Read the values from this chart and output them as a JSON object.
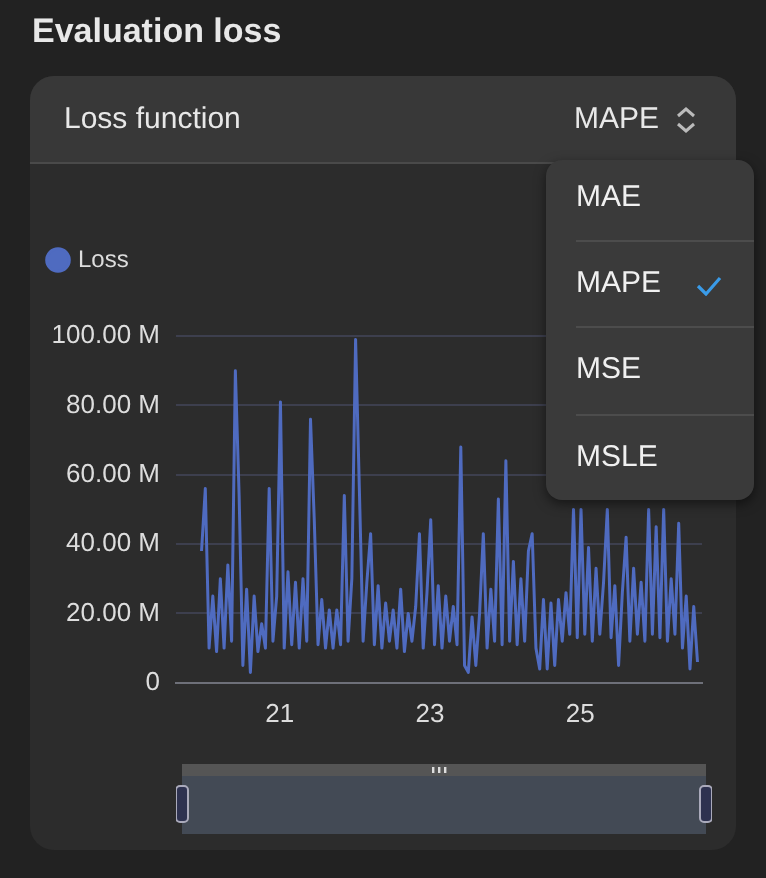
{
  "chart_data": {
    "type": "line",
    "title": "Evaluation loss",
    "subtitle": "Loss function",
    "annotations": [
      "MAPE",
      "MAE",
      "MAPE",
      "MSE",
      "MSLE"
    ],
    "x": [
      19.96,
      20.01,
      20.06,
      20.11,
      20.16,
      20.21,
      20.26,
      20.31,
      20.36,
      20.41,
      20.46,
      20.51,
      20.56,
      20.61,
      20.66,
      20.71,
      20.76,
      20.81,
      20.86,
      20.91,
      20.96,
      21.01,
      21.06,
      21.11,
      21.16,
      21.21,
      21.26,
      21.31,
      21.36,
      21.41,
      21.46,
      21.51,
      21.56,
      21.61,
      21.66,
      21.71,
      21.76,
      21.81,
      21.86,
      21.91,
      21.96,
      22.01,
      22.06,
      22.11,
      22.16,
      22.21,
      22.26,
      22.31,
      22.36,
      22.41,
      22.46,
      22.51,
      22.56,
      22.61,
      22.66,
      22.71,
      22.76,
      22.81,
      22.86,
      22.91,
      22.96,
      23.01,
      23.06,
      23.11,
      23.16,
      23.21,
      23.26,
      23.31,
      23.36,
      23.41,
      23.46,
      23.51,
      23.56,
      23.61,
      23.66,
      23.71,
      23.76,
      23.81,
      23.86,
      23.91,
      23.96,
      24.01,
      24.06,
      24.11,
      24.16,
      24.21,
      24.26,
      24.31,
      24.36,
      24.41,
      24.46,
      24.51,
      24.56,
      24.61,
      24.66,
      24.71,
      24.76,
      24.81,
      24.86,
      24.91,
      24.96,
      25.01,
      25.06,
      25.11,
      25.16,
      25.21,
      25.26,
      25.31,
      25.36,
      25.41,
      25.46,
      25.51,
      25.56,
      25.61,
      25.66,
      25.71,
      25.76,
      25.81,
      25.86,
      25.91,
      25.96,
      26.01,
      26.06,
      26.11,
      26.16,
      26.21,
      26.26,
      26.31,
      26.36,
      26.41,
      26.46,
      26.51,
      26.56
    ],
    "series": [
      {
        "name": "Loss",
        "color": "#4f6bc0",
        "values": [
          38,
          56,
          10,
          25,
          9,
          30,
          10,
          34,
          12,
          90,
          54,
          5,
          27,
          3,
          25,
          9,
          17,
          10,
          56,
          12,
          25,
          81,
          10,
          32,
          11,
          29,
          10,
          30,
          12,
          76,
          47,
          11,
          24,
          10,
          21,
          10,
          21,
          11,
          54,
          12,
          30,
          99,
          56,
          12,
          29,
          43,
          11,
          28,
          10,
          23,
          12,
          21,
          10,
          27,
          9,
          20,
          12,
          22,
          43,
          10,
          26,
          47,
          11,
          28,
          10,
          25,
          12,
          22,
          11,
          68,
          5,
          3,
          19,
          5,
          20,
          43,
          10,
          27,
          12,
          53,
          11,
          64,
          12,
          35,
          11,
          30,
          12,
          38,
          43,
          10,
          4,
          24,
          4,
          23,
          5,
          24,
          12,
          26,
          14,
          50,
          13,
          50,
          14,
          39,
          12,
          33,
          14,
          29,
          50,
          13,
          28,
          5,
          26,
          42,
          12,
          33,
          14,
          29,
          12,
          50,
          14,
          45,
          13,
          50,
          12,
          30,
          14,
          46,
          10,
          25,
          4,
          22,
          6
        ]
      }
    ],
    "xlim": [
      19.62,
      26.62
    ],
    "xticks": [
      21,
      23,
      25
    ],
    "ylim": [
      0,
      100
    ],
    "yticks": [
      {
        "value": 0,
        "label": "0"
      },
      {
        "value": 20,
        "label": "20.00 M"
      },
      {
        "value": 40,
        "label": "40.00 M"
      },
      {
        "value": 60,
        "label": "60.00 M"
      },
      {
        "value": 80,
        "label": "80.00 M"
      },
      {
        "value": 100,
        "label": "100.00 M"
      }
    ],
    "grid": "y",
    "legend": "top left",
    "marker": "none",
    "line_style": "solid"
  }
}
